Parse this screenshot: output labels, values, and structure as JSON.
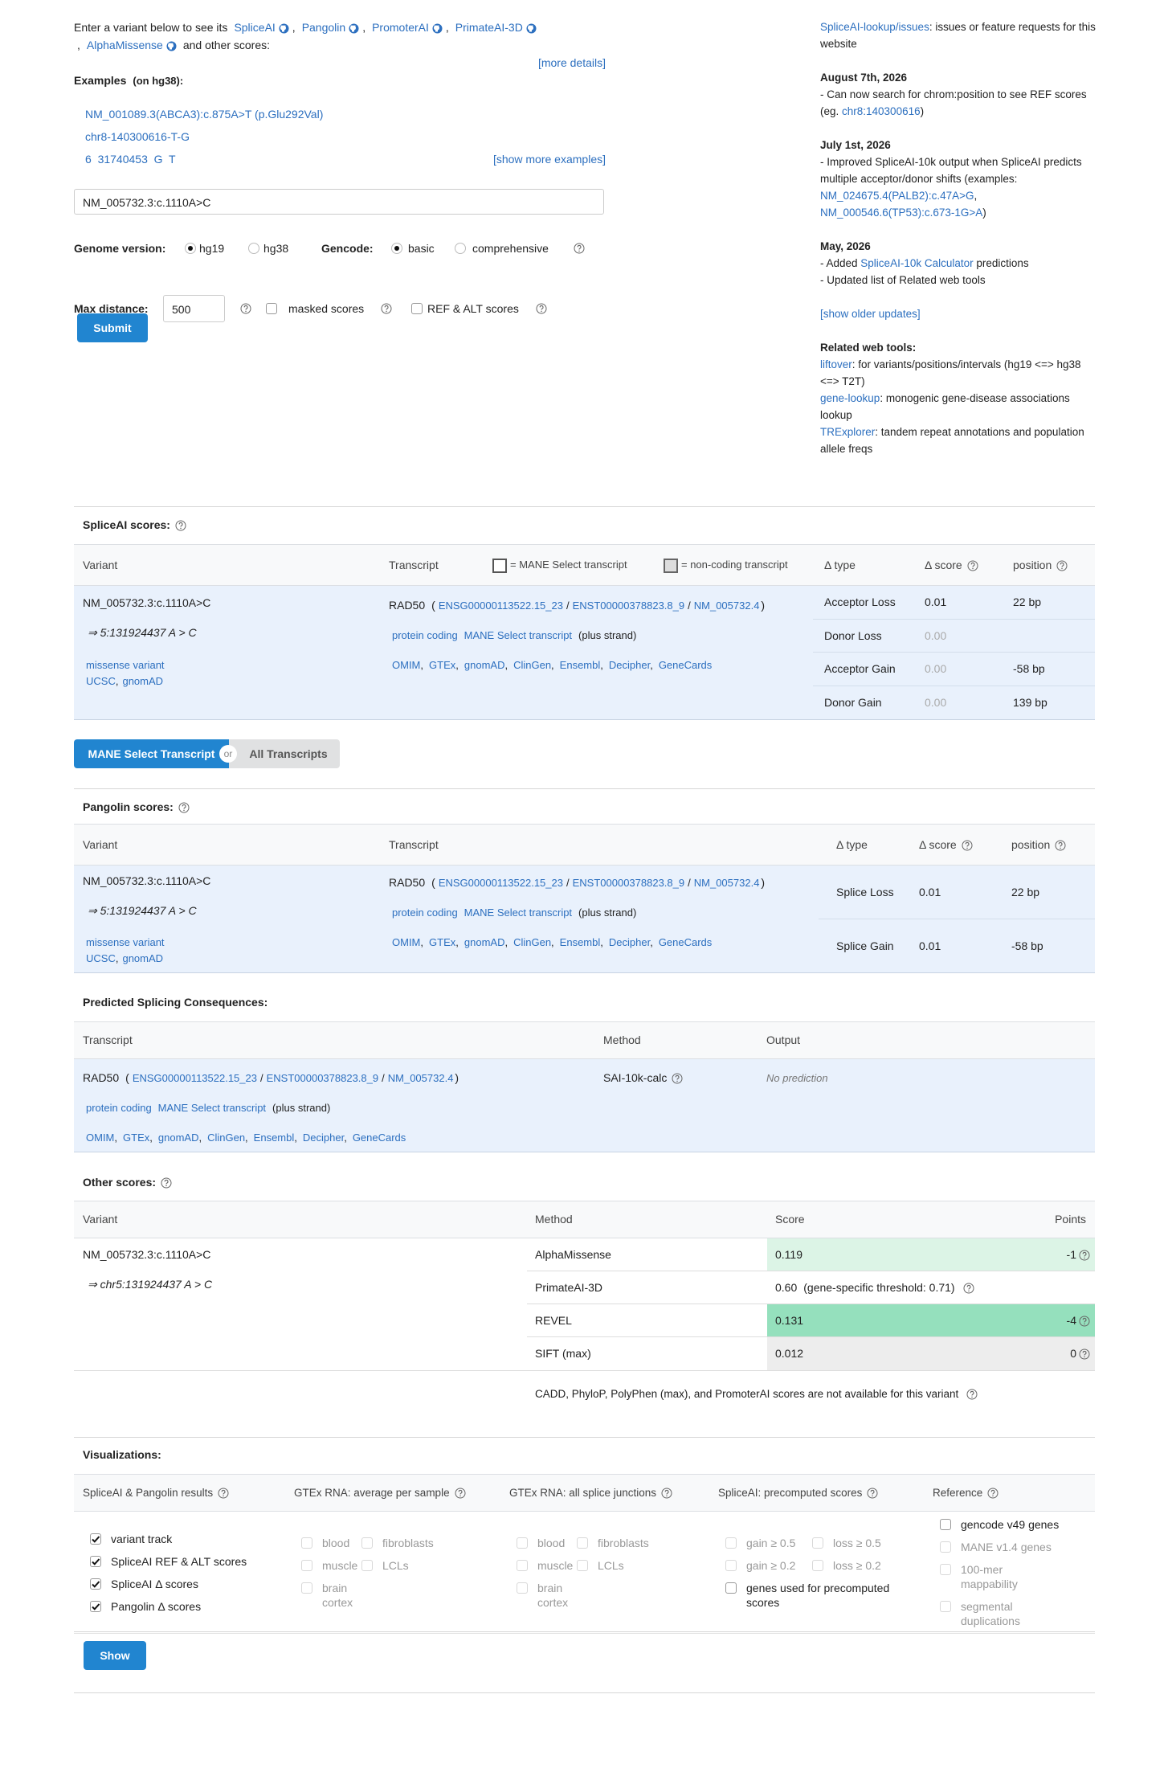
{
  "intro": {
    "lead": "Enter a variant below to see its",
    "tools": [
      "SpliceAI",
      "Pangolin",
      "PromoterAI",
      "PrimateAI-3D",
      "AlphaMissense"
    ],
    "separator": ",",
    "tail": "and other scores:",
    "more_details": "[more details]"
  },
  "examples": {
    "label": "Examples",
    "note": "(on hg38):",
    "items": [
      "NM_001089.3(ABCA3):c.875A>T (p.Glu292Val)",
      "chr8-140300616-T-G",
      "6  31740453  G  T"
    ],
    "show_more": "[show more examples]"
  },
  "form": {
    "query": "NM_005732.3:c.1110A>C",
    "genome_label": "Genome version:",
    "genome_options": [
      "hg19",
      "hg38"
    ],
    "genome_selected": 0,
    "gencode_label": "Gencode:",
    "gencode_options": [
      "basic",
      "comprehensive"
    ],
    "gencode_selected": 0,
    "max_distance_label": "Max distance:",
    "max_distance": 500,
    "masked": "masked scores",
    "ref_alt": "REF & ALT scores",
    "submit": "Submit"
  },
  "sidebar": {
    "issues": [
      {
        "text": "SpliceAI-lookup/issues",
        "link": true
      },
      {
        "text": ": issues or feature requests for this website"
      }
    ],
    "updates": [
      {
        "date": "August 7th, 2026",
        "lines": [
          [
            {
              "text": "- Can now search for chrom:position to see REF scores (eg. "
            },
            {
              "text": "chr8:140300616",
              "link": true
            },
            {
              "text": ")"
            }
          ]
        ]
      },
      {
        "date": "July 1st, 2026",
        "lines": [
          [
            {
              "text": "- Improved SpliceAI-10k output when SpliceAI predicts multiple acceptor/donor shifts (examples: "
            },
            {
              "text": "NM_024675.4(PALB2):c.47A>G",
              "link": true
            },
            {
              "text": ", "
            },
            {
              "text": "NM_000546.6(TP53):c.673-1G>A",
              "link": true
            },
            {
              "text": ")"
            }
          ]
        ]
      },
      {
        "date": "May, 2026",
        "lines": [
          [
            {
              "text": "- Added "
            },
            {
              "text": "SpliceAI-10k Calculator",
              "link": true
            },
            {
              "text": " predictions"
            }
          ],
          [
            {
              "text": "- Updated list of Related web tools"
            }
          ]
        ]
      }
    ],
    "show_older": "[show older updates]",
    "related_title": "Related web tools:",
    "related": [
      [
        {
          "text": "liftover",
          "link": true
        },
        {
          "text": ": for variants/positions/intervals (hg19 <=> hg38 <=> T2T)"
        }
      ],
      [
        {
          "text": "gene-lookup",
          "link": true
        },
        {
          "text": ": monogenic gene-disease associations lookup"
        }
      ],
      [
        {
          "text": "TRExplorer",
          "link": true
        },
        {
          "text": ": tandem repeat annotations and population allele freqs"
        }
      ]
    ]
  },
  "spliceai": {
    "title": "SpliceAI scores:",
    "columns": {
      "variant": "Variant",
      "transcript": "Transcript",
      "type": "Δ type",
      "score": "Δ score",
      "position": "position"
    },
    "legend": [
      "= MANE Select transcript",
      "= non-coding transcript"
    ],
    "variant": {
      "hgvs": "NM_005732.3:c.1110A>C",
      "locus": "⇒ 5:131924437 A > C",
      "consequence": "missense variant",
      "links": [
        "UCSC",
        "gnomAD"
      ],
      "link_sep": ","
    },
    "transcript": {
      "gene": "RAD50",
      "open": "(",
      "ids": [
        "ENSG00000113522.15_23",
        "ENST00000378823.8_9",
        "NM_005732.4"
      ],
      "id_sep": "/",
      "close": ")",
      "biotype": "protein coding",
      "tag": "MANE Select transcript",
      "strand": "(plus strand)",
      "links": [
        "OMIM",
        "GTEx",
        "gnomAD",
        "ClinGen",
        "Ensembl",
        "Decipher",
        "GeneCards"
      ],
      "link_sep": ","
    },
    "scores": [
      {
        "type": "Acceptor Loss",
        "score": "0.01",
        "position": "22 bp"
      },
      {
        "type": "Donor Loss",
        "score": "0.00"
      },
      {
        "type": "Acceptor Gain",
        "score": "0.00",
        "position": "-58 bp"
      },
      {
        "type": "Donor Gain",
        "score": "0.00",
        "position": "139 bp"
      }
    ]
  },
  "toggle": {
    "options": [
      "MANE Select Transcript",
      "All Transcripts"
    ],
    "or": "or",
    "selected": 0
  },
  "pangolin": {
    "title": "Pangolin scores:",
    "columns": {
      "variant": "Variant",
      "transcript": "Transcript",
      "type": "Δ type",
      "score": "Δ score",
      "position": "position"
    },
    "variant": {
      "hgvs": "NM_005732.3:c.1110A>C",
      "locus": "⇒ 5:131924437 A > C",
      "consequence": "missense variant",
      "links": [
        "UCSC",
        "gnomAD"
      ],
      "link_sep": ","
    },
    "transcript": {
      "gene": "RAD50",
      "open": "(",
      "ids": [
        "ENSG00000113522.15_23",
        "ENST00000378823.8_9",
        "NM_005732.4"
      ],
      "id_sep": "/",
      "close": ")",
      "biotype": "protein coding",
      "tag": "MANE Select transcript",
      "strand": "(plus strand)",
      "links": [
        "OMIM",
        "GTEx",
        "gnomAD",
        "ClinGen",
        "Ensembl",
        "Decipher",
        "GeneCards"
      ],
      "link_sep": ","
    },
    "scores": [
      {
        "type": "Splice Loss",
        "score": "0.01",
        "position": "22 bp"
      },
      {
        "type": "Splice Gain",
        "score": "0.01",
        "position": "-58 bp"
      }
    ]
  },
  "consequences": {
    "title": "Predicted Splicing Consequences:",
    "columns": [
      "Transcript",
      "Method",
      "Output"
    ],
    "transcript": {
      "gene": "RAD50",
      "open": "(",
      "ids": [
        "ENSG00000113522.15_23",
        "ENST00000378823.8_9",
        "NM_005732.4"
      ],
      "id_sep": "/",
      "close": ")",
      "biotype": "protein coding",
      "tag": "MANE Select transcript",
      "strand": "(plus strand)",
      "links": [
        "OMIM",
        "GTEx",
        "gnomAD",
        "ClinGen",
        "Ensembl",
        "Decipher",
        "GeneCards"
      ],
      "link_sep": ","
    },
    "method": "SAI-10k-calc",
    "output": "No prediction"
  },
  "other": {
    "title": "Other scores:",
    "columns": [
      "Variant",
      "Method",
      "Score",
      "Points"
    ],
    "variant": {
      "hgvs": "NM_005732.3:c.1110A>C",
      "locus": "⇒ chr5:131924437 A > C"
    },
    "rows": [
      {
        "method": "AlphaMissense",
        "score": "0.119",
        "points": "-1",
        "color": "#dcf4e6"
      },
      {
        "method": "PrimateAI-3D",
        "score": "0.60",
        "note": "(gene-specific threshold: 0.71)"
      },
      {
        "method": "REVEL",
        "score": "0.131",
        "points": "-4",
        "color": "#95e0bd"
      },
      {
        "method": "SIFT (max)",
        "score": "0.012",
        "points": "0",
        "color": "#ededed"
      }
    ],
    "note": "CADD, PhyloP, PolyPhen (max), and PromoterAI scores are not available for this variant"
  },
  "visualizations": {
    "title": "Visualizations:",
    "groups": [
      {
        "title": "SpliceAI & Pangolin results",
        "items": [
          {
            "label": "variant track",
            "checked": true
          },
          {
            "label": "SpliceAI REF & ALT scores",
            "checked": true
          },
          {
            "label": "SpliceAI Δ scores",
            "checked": true
          },
          {
            "label": "Pangolin Δ scores",
            "checked": true
          }
        ]
      },
      {
        "title": "GTEx RNA: average per sample",
        "items": [
          {
            "label": "blood",
            "disabled": true
          },
          {
            "label": "fibroblasts",
            "disabled": true
          },
          {
            "label": "muscle",
            "disabled": true
          },
          {
            "label": "LCLs",
            "disabled": true
          },
          {
            "label": "brain cortex",
            "disabled": true
          }
        ]
      },
      {
        "title": "GTEx RNA: all splice junctions",
        "items": [
          {
            "label": "blood",
            "disabled": true
          },
          {
            "label": "fibroblasts",
            "disabled": true
          },
          {
            "label": "muscle",
            "disabled": true
          },
          {
            "label": "LCLs",
            "disabled": true
          },
          {
            "label": "brain cortex",
            "disabled": true
          }
        ]
      },
      {
        "title": "SpliceAI: precomputed scores",
        "items": [
          {
            "label": "gain ≥ 0.5",
            "disabled": true
          },
          {
            "label": "loss ≥ 0.5",
            "disabled": true
          },
          {
            "label": "gain ≥ 0.2",
            "disabled": true
          },
          {
            "label": "loss ≥ 0.2",
            "disabled": true
          },
          {
            "label": "genes used for precomputed scores"
          }
        ]
      },
      {
        "title": "Reference",
        "items": [
          {
            "label": "gencode v49 genes"
          },
          {
            "label": "MANE v1.4 genes",
            "disabled": true
          },
          {
            "label": "100-mer mappability",
            "disabled": true
          },
          {
            "label": "segmental duplications",
            "disabled": true
          }
        ]
      }
    ],
    "button": "Show"
  }
}
